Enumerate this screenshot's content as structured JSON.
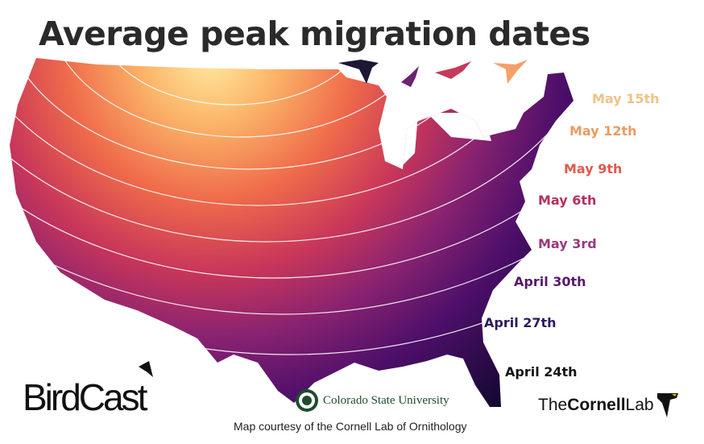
{
  "title": "Average peak migration dates",
  "legend_labels": [
    {
      "text": "May 15th",
      "color": "#f0c286"
    },
    {
      "text": "May 12th",
      "color": "#ec9a63"
    },
    {
      "text": "May 9th",
      "color": "#df5a4e"
    },
    {
      "text": "May 6th",
      "color": "#b7305f"
    },
    {
      "text": "May 3rd",
      "color": "#993a7c"
    },
    {
      "text": "April 30th",
      "color": "#571a6b"
    },
    {
      "text": "April 27th",
      "color": "#2d1a5c"
    },
    {
      "text": "April 24th",
      "color": "#141414"
    }
  ],
  "colors": {
    "latest": "#ffe79a",
    "mid": "#e8464f",
    "earliest": "#1a0a3a"
  },
  "logos": {
    "birdcast": "BirdCast",
    "csu": "Colorado State University",
    "cornell_the": "The",
    "cornell_name": "Cornell",
    "cornell_lab": "Lab"
  },
  "credit": "Map courtesy of the Cornell Lab of Ornithology"
}
